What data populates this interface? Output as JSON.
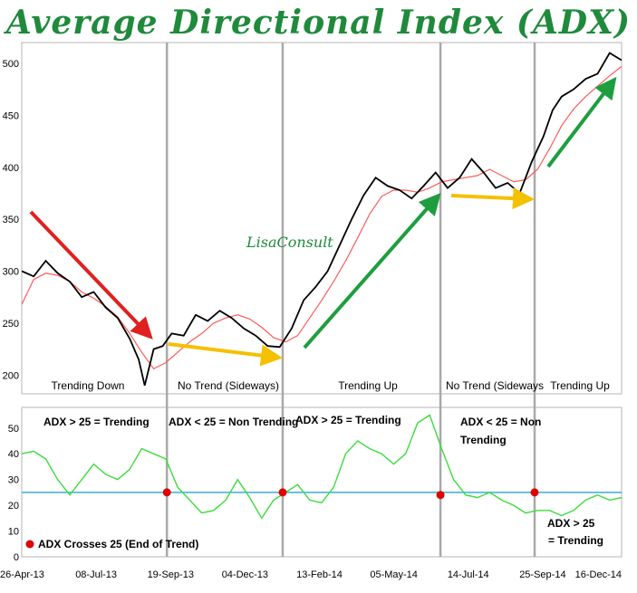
{
  "title": "Average Directional Index (ADX)",
  "watermark": "LisaConsult",
  "colors": {
    "price": "#000000",
    "ma": "#ff5a5a",
    "adx": "#3ddc3d",
    "threshold": "#3aaed8",
    "cross_marker": "#e00000",
    "arrow_down": "#e02020",
    "arrow_up": "#1e9e3e",
    "arrow_side": "#f5c000",
    "divider": "#a9a9a9",
    "title": "#1f8a3b"
  },
  "chart_data": [
    {
      "type": "line",
      "panel": "price",
      "x_tick_labels": [
        "26-Apr-13",
        "08-Jul-13",
        "19-Sep-13",
        "04-Dec-13",
        "13-Feb-14",
        "05-May-14",
        "14-Jul-14",
        "25-Sep-14",
        "16-Dec-14"
      ],
      "y_ticks": [
        200,
        250,
        300,
        350,
        400,
        450,
        500
      ],
      "ylim": [
        182,
        520
      ],
      "xlim": [
        0,
        100
      ],
      "grid": false,
      "series": [
        {
          "role": "price",
          "x": [
            0,
            2,
            4,
            6,
            8,
            10,
            12,
            14,
            16,
            18,
            19.5,
            20.5,
            22,
            23.5,
            25,
            27,
            29,
            31,
            33,
            35,
            37,
            39,
            41,
            43,
            45,
            47,
            49,
            51,
            53,
            55,
            57,
            59,
            61,
            63,
            65,
            67,
            69,
            71,
            73,
            75,
            77,
            79,
            81,
            83,
            85,
            87,
            88.5,
            90,
            92,
            94,
            96,
            98,
            100
          ],
          "values": [
            300,
            295,
            310,
            298,
            290,
            275,
            280,
            265,
            255,
            235,
            215,
            190,
            225,
            228,
            240,
            238,
            258,
            252,
            262,
            255,
            245,
            238,
            228,
            227,
            245,
            272,
            285,
            300,
            325,
            350,
            373,
            390,
            382,
            378,
            370,
            382,
            395,
            380,
            390,
            408,
            395,
            380,
            385,
            375,
            405,
            430,
            455,
            468,
            475,
            485,
            490,
            510,
            503
          ]
        },
        {
          "role": "moving average",
          "x": [
            0,
            2,
            4,
            6,
            8,
            10,
            12,
            14,
            16,
            18,
            20,
            22,
            24,
            26,
            28,
            30,
            32,
            34,
            36,
            38,
            40,
            42,
            44,
            46,
            48,
            50,
            52,
            54,
            56,
            58,
            60,
            62,
            64,
            66,
            68,
            70,
            72,
            74,
            76,
            78,
            80,
            82,
            84,
            86,
            88,
            90,
            92,
            94,
            96,
            98,
            100
          ],
          "values": [
            268,
            292,
            298,
            296,
            290,
            280,
            274,
            266,
            256,
            240,
            222,
            206,
            212,
            222,
            232,
            240,
            250,
            255,
            258,
            254,
            246,
            236,
            232,
            238,
            255,
            272,
            290,
            310,
            332,
            355,
            372,
            378,
            378,
            376,
            380,
            386,
            388,
            390,
            392,
            398,
            392,
            386,
            388,
            398,
            418,
            440,
            456,
            468,
            478,
            488,
            497
          ]
        }
      ],
      "region_labels": [
        "Trending Down",
        "No Trend (Sideways)",
        "Trending Up",
        "No Trend (Sideways",
        "Trending Up"
      ],
      "watermark": "LisaConsult"
    },
    {
      "type": "line",
      "panel": "ADX",
      "x_tick_labels": [
        "26-Apr-13",
        "08-Jul-13",
        "19-Sep-13",
        "04-Dec-13",
        "13-Feb-14",
        "05-May-14",
        "14-Jul-14",
        "25-Sep-14",
        "16-Dec-14"
      ],
      "y_ticks": [
        0,
        10,
        20,
        30,
        40,
        50
      ],
      "ylim": [
        0,
        58
      ],
      "xlim": [
        0,
        100
      ],
      "grid": false,
      "series": [
        {
          "role": "ADX",
          "x": [
            0,
            2,
            4,
            6,
            8,
            10,
            12,
            14,
            16,
            18,
            20,
            22,
            24,
            26,
            28,
            30,
            32,
            34,
            36,
            38,
            40,
            42,
            44,
            46,
            48,
            50,
            52,
            54,
            56,
            58,
            60,
            62,
            64,
            66,
            68,
            70,
            72,
            74,
            76,
            78,
            80,
            82,
            84,
            86,
            88,
            90,
            92,
            94,
            96,
            98,
            100
          ],
          "values": [
            40,
            41,
            38,
            30,
            24,
            30,
            36,
            32,
            30,
            34,
            42,
            40,
            38,
            27,
            22,
            17,
            18,
            22,
            30,
            23,
            15,
            22,
            25,
            28,
            22,
            21,
            27,
            40,
            45,
            42,
            40,
            36,
            40,
            52,
            55,
            42,
            30,
            24,
            23,
            25,
            22,
            20,
            17,
            18,
            18,
            16,
            18,
            22,
            24,
            22,
            23
          ]
        },
        {
          "role": "threshold",
          "x": [
            0,
            100
          ],
          "values": [
            25,
            25
          ]
        },
        {
          "role": "ADX crosses 25",
          "x": [
            24.2,
            43.5,
            69.8,
            85.5
          ],
          "values": [
            25,
            25,
            24,
            25
          ]
        }
      ],
      "annotations": [
        "ADX > 25 = Trending",
        "ADX < 25 = Non Trending",
        "ADX > 25 = Trending",
        "ADX < 25 = Non Trending",
        "ADX > 25 = Trending"
      ],
      "legend": "ADX Crosses 25 (End of Trend)"
    }
  ]
}
